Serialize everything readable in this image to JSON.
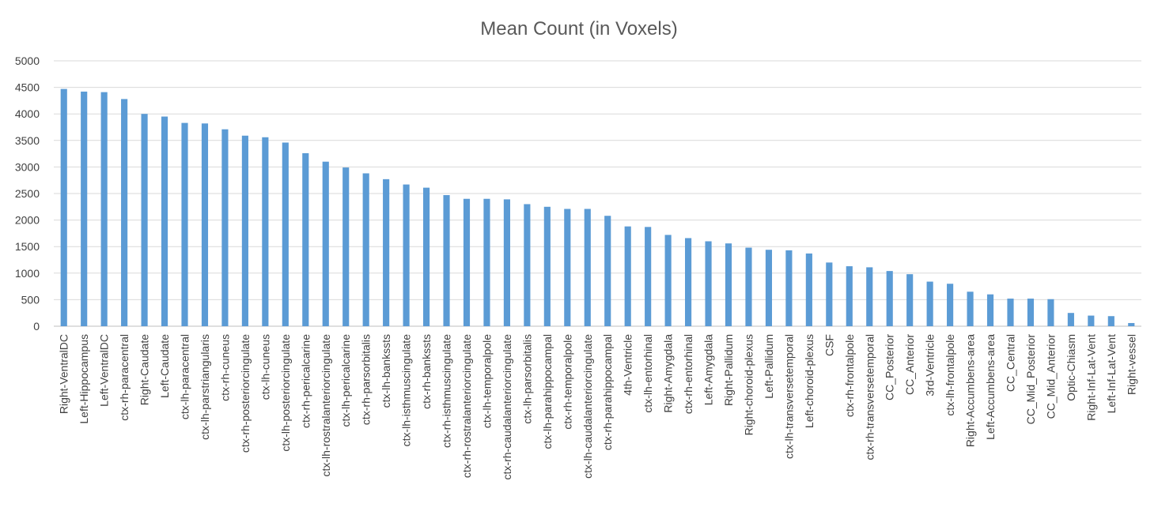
{
  "chart_data": {
    "type": "bar",
    "title": "Mean Count (in Voxels)",
    "xlabel": "",
    "ylabel": "",
    "ylim": [
      0,
      5000
    ],
    "yticks": [
      0,
      500,
      1000,
      1500,
      2000,
      2500,
      3000,
      3500,
      4000,
      4500,
      5000
    ],
    "grid": true,
    "legend": "none",
    "bar_color": "#5B9BD5",
    "categories": [
      "Right-VentralDC",
      "Left-Hippocampus",
      "Left-VentralDC",
      "ctx-rh-paracentral",
      "Right-Caudate",
      "Left-Caudate",
      "ctx-lh-paracentral",
      "ctx-lh-parstriangularis",
      "ctx-rh-cuneus",
      "ctx-rh-posteriorcingulate",
      "ctx-lh-cuneus",
      "ctx-lh-posteriorcingulate",
      "ctx-rh-pericalcarine",
      "ctx-lh-rostralanteriorcingulate",
      "ctx-lh-pericalcarine",
      "ctx-rh-parsorbitalis",
      "ctx-lh-bankssts",
      "ctx-lh-isthmuscingulate",
      "ctx-rh-bankssts",
      "ctx-rh-isthmuscingulate",
      "ctx-rh-rostralanteriorcingulate",
      "ctx-lh-temporalpole",
      "ctx-rh-caudalanteriorcingulate",
      "ctx-lh-parsorbitalis",
      "ctx-lh-parahippocampal",
      "ctx-rh-temporalpole",
      "ctx-lh-caudalanteriorcingulate",
      "ctx-rh-parahippocampal",
      "4th-Ventricle",
      "ctx-lh-entorhinal",
      "Right-Amygdala",
      "ctx-rh-entorhinal",
      "Left-Amygdala",
      "Right-Pallidum",
      "Right-choroid-plexus",
      "Left-Pallidum",
      "ctx-lh-transversetemporal",
      "Left-choroid-plexus",
      "CSF",
      "ctx-rh-frontalpole",
      "ctx-rh-transversetemporal",
      "CC_Posterior",
      "CC_Anterior",
      "3rd-Ventricle",
      "ctx-lh-frontalpole",
      "Right-Accumbens-area",
      "Left-Accumbens-area",
      "CC_Central",
      "CC_Mid_Posterior",
      "CC_Mid_Anterior",
      "Optic-Chiasm",
      "Right-Inf-Lat-Vent",
      "Left-Inf-Lat-Vent",
      "Right-vessel"
    ],
    "values": [
      4470,
      4420,
      4410,
      4280,
      4000,
      3950,
      3830,
      3820,
      3710,
      3590,
      3560,
      3460,
      3260,
      3100,
      2990,
      2880,
      2770,
      2670,
      2610,
      2470,
      2400,
      2400,
      2390,
      2300,
      2250,
      2210,
      2210,
      2080,
      1880,
      1870,
      1720,
      1660,
      1600,
      1560,
      1480,
      1440,
      1430,
      1370,
      1200,
      1130,
      1110,
      1040,
      980,
      840,
      800,
      650,
      600,
      520,
      520,
      510,
      250,
      200,
      190,
      60
    ]
  }
}
